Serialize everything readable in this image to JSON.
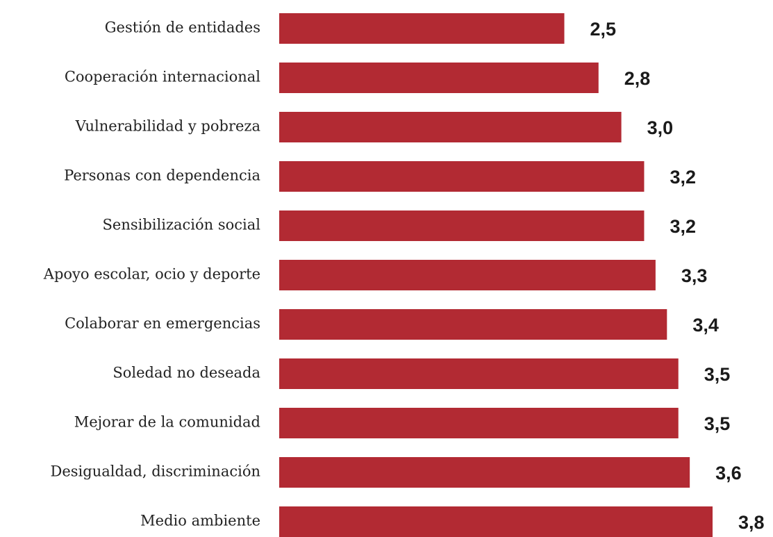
{
  "chart_data": {
    "type": "bar",
    "orientation": "horizontal",
    "categories": [
      "Gestión de entidades",
      "Cooperación internacional",
      "Vulnerabilidad y pobreza",
      "Personas con dependencia",
      "Sensibilización social",
      "Apoyo escolar, ocio y deporte",
      "Colaborar en emergencias",
      "Soledad no deseada",
      "Mejorar de la comunidad",
      "Desigualdad, discriminación",
      "Medio ambiente"
    ],
    "values": [
      2.5,
      2.8,
      3.0,
      3.2,
      3.2,
      3.3,
      3.4,
      3.5,
      3.5,
      3.6,
      3.8
    ],
    "value_labels": [
      "2,5",
      "2,8",
      "3,0",
      "3,2",
      "3,2",
      "3,3",
      "3,4",
      "3,5",
      "3,5",
      "3,6",
      "3,8"
    ],
    "color": "#b22a33"
  }
}
